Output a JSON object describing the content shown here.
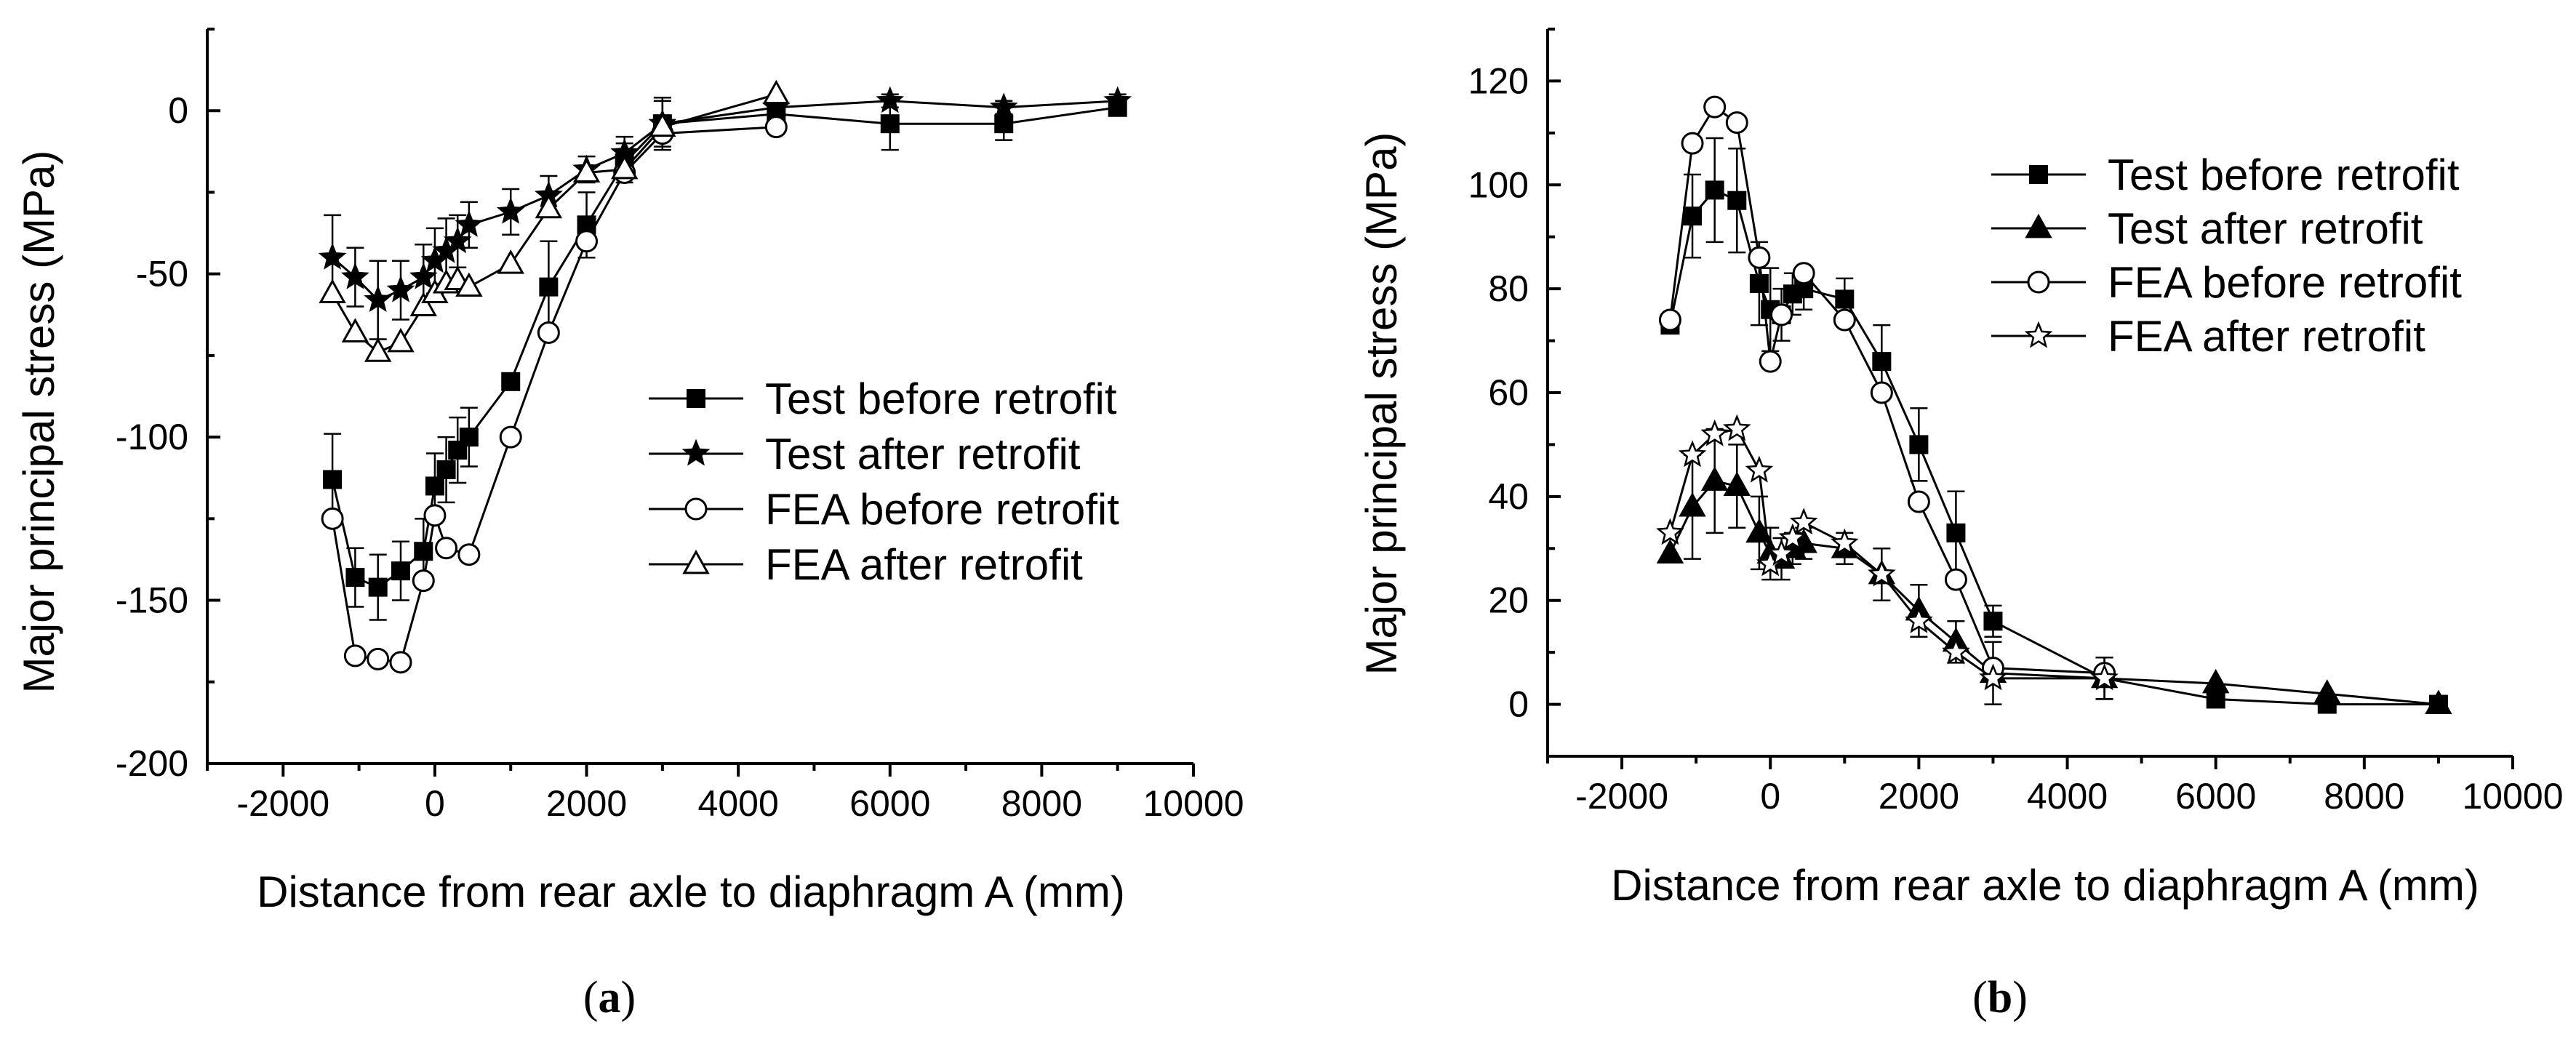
{
  "chart_data": [
    {
      "type": "line",
      "panel_label": "a",
      "xlabel": "Distance from rear axle to diaphragm A (mm)",
      "ylabel": "Major principal stress (MPa)",
      "xlim": [
        -3000,
        10000
      ],
      "ylim": [
        -200,
        25
      ],
      "xticks": [
        -2000,
        0,
        2000,
        4000,
        6000,
        8000,
        10000
      ],
      "yticks": [
        -200,
        -150,
        -100,
        -50,
        0
      ],
      "legend_position": "center-right",
      "series": [
        {
          "name": "Test before retrofit",
          "marker": "square-filled",
          "points": [
            {
              "x": -1350,
              "y": -113,
              "err": 14
            },
            {
              "x": -1050,
              "y": -143,
              "err": 9
            },
            {
              "x": -750,
              "y": -146,
              "err": 10
            },
            {
              "x": -450,
              "y": -141,
              "err": 9
            },
            {
              "x": -150,
              "y": -135,
              "err": 10
            },
            {
              "x": 0,
              "y": -115,
              "err": 10
            },
            {
              "x": 150,
              "y": -110,
              "err": 10
            },
            {
              "x": 300,
              "y": -104,
              "err": 10
            },
            {
              "x": 450,
              "y": -100,
              "err": 9
            },
            {
              "x": 1000,
              "y": -83,
              "err": 0
            },
            {
              "x": 1500,
              "y": -54,
              "err": 14
            },
            {
              "x": 2000,
              "y": -35,
              "err": 10
            },
            {
              "x": 2500,
              "y": -16,
              "err": 6
            },
            {
              "x": 3000,
              "y": -4,
              "err": 8
            },
            {
              "x": 4500,
              "y": -1,
              "err": 4
            },
            {
              "x": 6000,
              "y": -4,
              "err": 8
            },
            {
              "x": 7500,
              "y": -4,
              "err": 5
            },
            {
              "x": 9000,
              "y": 1,
              "err": 0
            }
          ]
        },
        {
          "name": "Test after retrofit",
          "marker": "star-filled",
          "points": [
            {
              "x": -1350,
              "y": -45,
              "err": 13
            },
            {
              "x": -1050,
              "y": -51,
              "err": 9
            },
            {
              "x": -750,
              "y": -58,
              "err": 12
            },
            {
              "x": -450,
              "y": -55,
              "err": 9
            },
            {
              "x": -150,
              "y": -51,
              "err": 10
            },
            {
              "x": 0,
              "y": -46,
              "err": 10
            },
            {
              "x": 150,
              "y": -43,
              "err": 10
            },
            {
              "x": 300,
              "y": -40,
              "err": 8
            },
            {
              "x": 450,
              "y": -35,
              "err": 7
            },
            {
              "x": 1000,
              "y": -31,
              "err": 7
            },
            {
              "x": 1500,
              "y": -26,
              "err": 6
            },
            {
              "x": 2000,
              "y": -18,
              "err": 4
            },
            {
              "x": 2500,
              "y": -13,
              "err": 5
            },
            {
              "x": 3000,
              "y": -4,
              "err": 7
            },
            {
              "x": 4500,
              "y": 1,
              "err": 3
            },
            {
              "x": 6000,
              "y": 3,
              "err": 2
            },
            {
              "x": 7500,
              "y": 1,
              "err": 2
            },
            {
              "x": 9000,
              "y": 3,
              "err": 2
            }
          ]
        },
        {
          "name": "FEA before retrofit",
          "marker": "circle-open",
          "points": [
            {
              "x": -1350,
              "y": -125
            },
            {
              "x": -1050,
              "y": -167
            },
            {
              "x": -750,
              "y": -168
            },
            {
              "x": -450,
              "y": -169
            },
            {
              "x": -150,
              "y": -144
            },
            {
              "x": 0,
              "y": -124
            },
            {
              "x": 150,
              "y": -134
            },
            {
              "x": 450,
              "y": -136
            },
            {
              "x": 1000,
              "y": -100
            },
            {
              "x": 1500,
              "y": -68
            },
            {
              "x": 2000,
              "y": -40
            },
            {
              "x": 2500,
              "y": -19
            },
            {
              "x": 3000,
              "y": -7
            },
            {
              "x": 4500,
              "y": -5
            }
          ]
        },
        {
          "name": "FEA after retrofit",
          "marker": "triangle-open",
          "points": [
            {
              "x": -1350,
              "y": -56
            },
            {
              "x": -1050,
              "y": -68
            },
            {
              "x": -750,
              "y": -74
            },
            {
              "x": -450,
              "y": -71
            },
            {
              "x": -150,
              "y": -60
            },
            {
              "x": 0,
              "y": -56
            },
            {
              "x": 150,
              "y": -53
            },
            {
              "x": 300,
              "y": -52
            },
            {
              "x": 450,
              "y": -54
            },
            {
              "x": 1000,
              "y": -47
            },
            {
              "x": 1500,
              "y": -30
            },
            {
              "x": 2000,
              "y": -19
            },
            {
              "x": 2500,
              "y": -18
            },
            {
              "x": 3000,
              "y": -5
            },
            {
              "x": 4500,
              "y": 5
            }
          ]
        }
      ]
    },
    {
      "type": "line",
      "panel_label": "b",
      "xlabel": "Distance from rear axle to diaphragm A (mm)",
      "ylabel": "Major principal stress (MPa)",
      "xlim": [
        -3000,
        10000
      ],
      "ylim": [
        -10,
        130
      ],
      "xticks": [
        -2000,
        0,
        2000,
        4000,
        6000,
        8000,
        10000
      ],
      "yticks": [
        0,
        20,
        40,
        60,
        80,
        100,
        120
      ],
      "legend_position": "top-right",
      "series": [
        {
          "name": "Test before retrofit",
          "marker": "square-filled",
          "points": [
            {
              "x": -1350,
              "y": 73,
              "err": 0
            },
            {
              "x": -1050,
              "y": 94,
              "err": 8
            },
            {
              "x": -750,
              "y": 99,
              "err": 10
            },
            {
              "x": -450,
              "y": 97,
              "err": 10
            },
            {
              "x": -150,
              "y": 81,
              "err": 8
            },
            {
              "x": 0,
              "y": 76,
              "err": 8
            },
            {
              "x": 150,
              "y": 75,
              "err": 5
            },
            {
              "x": 300,
              "y": 79,
              "err": 4
            },
            {
              "x": 450,
              "y": 80,
              "err": 4
            },
            {
              "x": 1000,
              "y": 78,
              "err": 4
            },
            {
              "x": 1500,
              "y": 66,
              "err": 7
            },
            {
              "x": 2000,
              "y": 50,
              "err": 7
            },
            {
              "x": 2500,
              "y": 33,
              "err": 8
            },
            {
              "x": 3000,
              "y": 16,
              "err": 3
            },
            {
              "x": 4500,
              "y": 5,
              "err": 4
            },
            {
              "x": 6000,
              "y": 1,
              "err": 0
            },
            {
              "x": 7500,
              "y": 0,
              "err": 0
            },
            {
              "x": 9000,
              "y": 0,
              "err": 0
            }
          ]
        },
        {
          "name": "Test after retrofit",
          "marker": "triangle-filled",
          "points": [
            {
              "x": -1350,
              "y": 29,
              "err": 0
            },
            {
              "x": -1050,
              "y": 38,
              "err": 10
            },
            {
              "x": -750,
              "y": 43,
              "err": 10
            },
            {
              "x": -450,
              "y": 42,
              "err": 8
            },
            {
              "x": -150,
              "y": 33,
              "err": 7
            },
            {
              "x": 0,
              "y": 29,
              "err": 5
            },
            {
              "x": 150,
              "y": 28,
              "err": 4
            },
            {
              "x": 300,
              "y": 30,
              "err": 3
            },
            {
              "x": 450,
              "y": 31,
              "err": 3
            },
            {
              "x": 1000,
              "y": 30,
              "err": 3
            },
            {
              "x": 1500,
              "y": 25,
              "err": 5
            },
            {
              "x": 2000,
              "y": 18,
              "err": 5
            },
            {
              "x": 2500,
              "y": 12,
              "err": 4
            },
            {
              "x": 3000,
              "y": 6,
              "err": 6
            },
            {
              "x": 4500,
              "y": 5,
              "err": 4
            },
            {
              "x": 6000,
              "y": 4,
              "err": 0
            },
            {
              "x": 7500,
              "y": 2,
              "err": 0
            },
            {
              "x": 9000,
              "y": 0,
              "err": 0
            }
          ]
        },
        {
          "name": "FEA before retrofit",
          "marker": "circle-open",
          "points": [
            {
              "x": -1350,
              "y": 74
            },
            {
              "x": -1050,
              "y": 108
            },
            {
              "x": -750,
              "y": 115
            },
            {
              "x": -450,
              "y": 112
            },
            {
              "x": -150,
              "y": 86
            },
            {
              "x": 0,
              "y": 66
            },
            {
              "x": 150,
              "y": 75
            },
            {
              "x": 450,
              "y": 83
            },
            {
              "x": 1000,
              "y": 74
            },
            {
              "x": 1500,
              "y": 60
            },
            {
              "x": 2000,
              "y": 39
            },
            {
              "x": 2500,
              "y": 24
            },
            {
              "x": 3000,
              "y": 7
            },
            {
              "x": 4500,
              "y": 6
            }
          ]
        },
        {
          "name": "FEA after retrofit",
          "marker": "star-open",
          "points": [
            {
              "x": -1350,
              "y": 33
            },
            {
              "x": -1050,
              "y": 48
            },
            {
              "x": -750,
              "y": 52
            },
            {
              "x": -450,
              "y": 53
            },
            {
              "x": -150,
              "y": 45
            },
            {
              "x": 0,
              "y": 27
            },
            {
              "x": 150,
              "y": 29
            },
            {
              "x": 300,
              "y": 32
            },
            {
              "x": 450,
              "y": 35
            },
            {
              "x": 1000,
              "y": 31
            },
            {
              "x": 1500,
              "y": 25
            },
            {
              "x": 2000,
              "y": 16
            },
            {
              "x": 2500,
              "y": 10
            },
            {
              "x": 3000,
              "y": 5
            },
            {
              "x": 4500,
              "y": 5
            }
          ]
        }
      ]
    }
  ]
}
